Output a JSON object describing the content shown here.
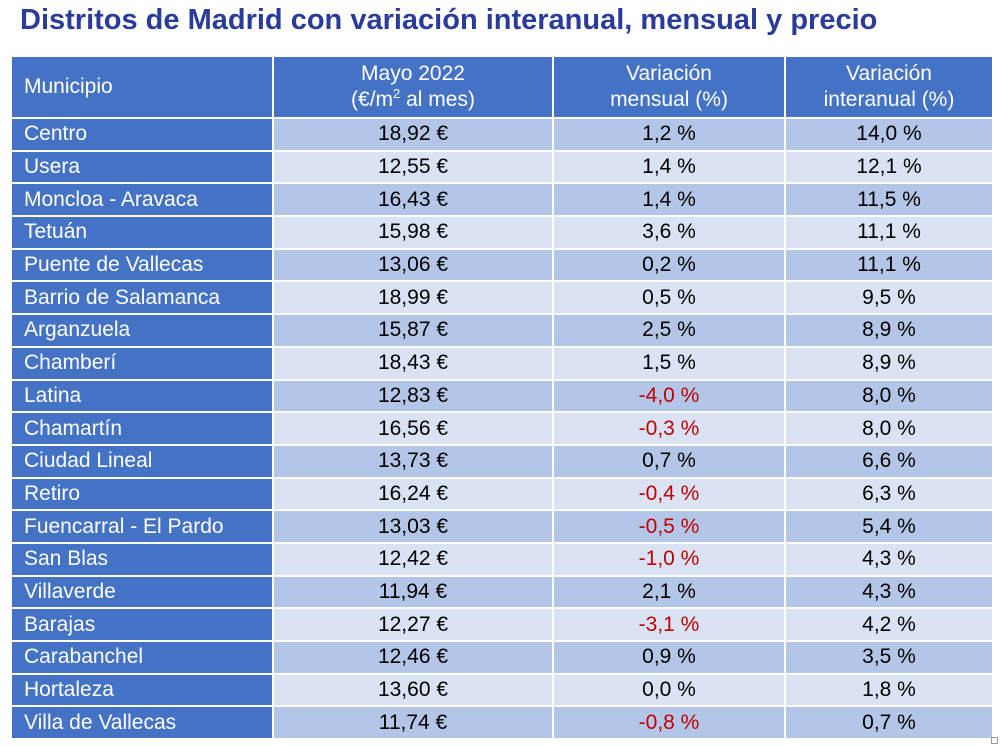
{
  "title": "Distritos de Madrid con variación interanual, mensual y precio",
  "headers": {
    "municipio": "Municipio",
    "price_line1": "Mayo 2022",
    "price_line2_pre": "(€/m",
    "price_line2_sup": "2",
    "price_line2_post": " al mes)",
    "monthly_line1": "Variación",
    "monthly_line2": "mensual (%)",
    "yearly_line1": "Variación",
    "yearly_line2": "interanual (%)"
  },
  "colors": {
    "title": "#2a3b9a",
    "header_bg": "#4472c4",
    "row_odd": "#b4c6e7",
    "row_even": "#dae3f3",
    "negative": "#c00000"
  },
  "rows": [
    {
      "name": "Centro",
      "price": "18,92 €",
      "monthly": "1,2 %",
      "yearly": "14,0 %"
    },
    {
      "name": "Usera",
      "price": "12,55 €",
      "monthly": "1,4 %",
      "yearly": "12,1 %"
    },
    {
      "name": "Moncloa - Aravaca",
      "price": "16,43 €",
      "monthly": "1,4 %",
      "yearly": "11,5 %"
    },
    {
      "name": "Tetuán",
      "price": "15,98 €",
      "monthly": "3,6 %",
      "yearly": "11,1 %"
    },
    {
      "name": "Puente de Vallecas",
      "price": "13,06 €",
      "monthly": "0,2 %",
      "yearly": "11,1 %"
    },
    {
      "name": "Barrio de Salamanca",
      "price": "18,99 €",
      "monthly": "0,5 %",
      "yearly": "9,5 %"
    },
    {
      "name": "Arganzuela",
      "price": "15,87 €",
      "monthly": "2,5 %",
      "yearly": "8,9 %"
    },
    {
      "name": "Chamberí",
      "price": "18,43 €",
      "monthly": "1,5 %",
      "yearly": "8,9 %"
    },
    {
      "name": "Latina",
      "price": "12,83 €",
      "monthly": "-4,0 %",
      "yearly": "8,0 %"
    },
    {
      "name": "Chamartín",
      "price": "16,56 €",
      "monthly": "-0,3 %",
      "yearly": "8,0 %"
    },
    {
      "name": "Ciudad Lineal",
      "price": "13,73 €",
      "monthly": "0,7 %",
      "yearly": "6,6 %"
    },
    {
      "name": "Retiro",
      "price": "16,24 €",
      "monthly": "-0,4 %",
      "yearly": "6,3 %"
    },
    {
      "name": "Fuencarral - El Pardo",
      "price": "13,03 €",
      "monthly": "-0,5 %",
      "yearly": "5,4 %"
    },
    {
      "name": "San Blas",
      "price": "12,42 €",
      "monthly": "-1,0 %",
      "yearly": "4,3 %"
    },
    {
      "name": "Villaverde",
      "price": "11,94 €",
      "monthly": "2,1 %",
      "yearly": "4,3 %"
    },
    {
      "name": "Barajas",
      "price": "12,27 €",
      "monthly": "-3,1 %",
      "yearly": "4,2 %"
    },
    {
      "name": "Carabanchel",
      "price": "12,46 €",
      "monthly": "0,9 %",
      "yearly": "3,5 %"
    },
    {
      "name": "Hortaleza",
      "price": "13,60 €",
      "monthly": "0,0 %",
      "yearly": "1,8 %"
    },
    {
      "name": "Villa de Vallecas",
      "price": "11,74 €",
      "monthly": "-0,8 %",
      "yearly": "0,7 %"
    }
  ]
}
